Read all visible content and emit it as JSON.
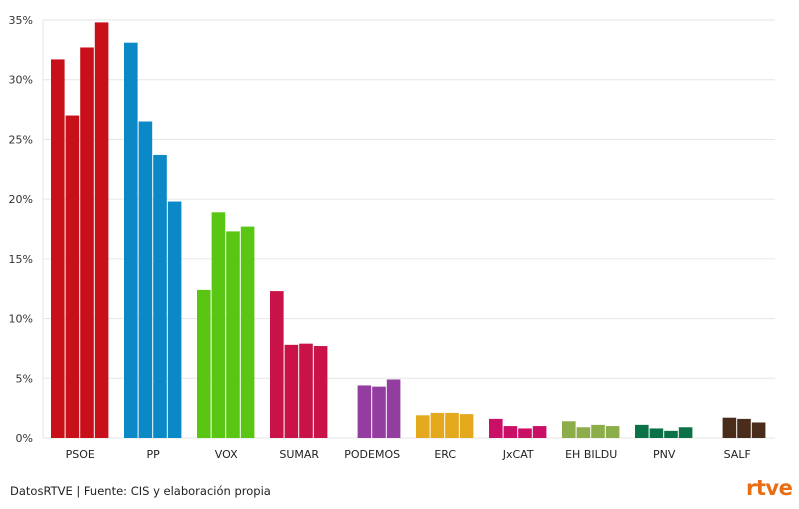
{
  "chart_data": {
    "type": "bar",
    "title": "",
    "xlabel": "",
    "ylabel": "",
    "ylim": [
      0,
      35
    ],
    "yticks": [
      "0%",
      "5%",
      "10%",
      "15%",
      "20%",
      "25%",
      "30%",
      "35%"
    ],
    "grid": true,
    "categories": [
      "PSOE",
      "PP",
      "VOX",
      "SUMAR",
      "PODEMOS",
      "ERC",
      "JxCAT",
      "EH BILDU",
      "PNV",
      "SALF"
    ],
    "colors": [
      "#c8101a",
      "#0b89c6",
      "#5ac614",
      "#c91248",
      "#943da0",
      "#e4a91c",
      "#c90f66",
      "#8cad4a",
      "#0b7248",
      "#4a2c1a"
    ],
    "values": [
      [
        31.7,
        27.0,
        32.7,
        34.8
      ],
      [
        33.1,
        26.5,
        23.7,
        19.8
      ],
      [
        12.4,
        18.9,
        17.3,
        17.7
      ],
      [
        12.3,
        7.8,
        7.9,
        7.7
      ],
      [
        null,
        4.4,
        4.3,
        4.9
      ],
      [
        1.9,
        2.1,
        2.1,
        2.0
      ],
      [
        1.6,
        1.0,
        0.8,
        1.0
      ],
      [
        1.4,
        0.9,
        1.1,
        1.0
      ],
      [
        1.1,
        0.8,
        0.6,
        0.9
      ],
      [
        null,
        1.7,
        1.6,
        1.3
      ]
    ]
  },
  "footer": {
    "source": "DatosRTVE | Fuente: CIS y elaboración propia",
    "logo": "rtve"
  }
}
